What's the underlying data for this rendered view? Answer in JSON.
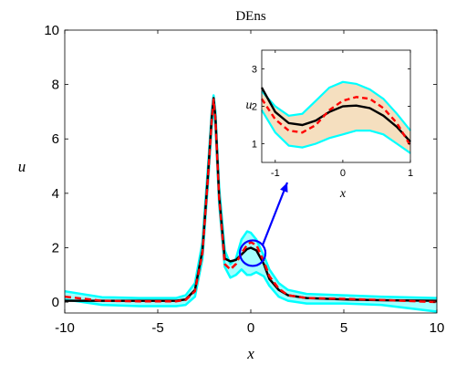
{
  "chart_data": {
    "type": "line",
    "title": "DEns",
    "xlabel": "x",
    "ylabel": "u",
    "xlim": [
      -10,
      10
    ],
    "ylim": [
      -0.4,
      10
    ],
    "x_ticks": [
      -10,
      -5,
      0,
      5,
      10
    ],
    "y_ticks": [
      0,
      2,
      4,
      6,
      8,
      10
    ],
    "grid": false,
    "series": [
      {
        "color": "#00ffff",
        "role": "band",
        "x": [
          -10,
          -8,
          -6,
          -4,
          -3.5,
          -3,
          -2.6,
          -2.3,
          -2.1,
          -2,
          -1.9,
          -1.7,
          -1.4,
          -1.1,
          -0.8,
          -0.5,
          -0.2,
          0,
          0.3,
          0.7,
          1,
          1.5,
          2,
          3,
          5,
          7,
          10
        ],
        "upper": [
          0.4,
          0.18,
          0.15,
          0.15,
          0.25,
          0.7,
          2.2,
          5.0,
          7.0,
          7.6,
          7.0,
          4.2,
          1.9,
          1.4,
          1.6,
          2.3,
          2.6,
          2.55,
          2.3,
          1.7,
          1.2,
          0.7,
          0.45,
          0.3,
          0.25,
          0.2,
          0.15
        ],
        "lower": [
          0.1,
          -0.1,
          -0.15,
          -0.15,
          -0.1,
          0.2,
          1.6,
          4.4,
          6.5,
          7.2,
          6.5,
          3.6,
          1.3,
          0.9,
          1.0,
          1.2,
          1.0,
          1.0,
          1.1,
          0.95,
          0.6,
          0.2,
          0.05,
          -0.05,
          -0.05,
          -0.1,
          -0.35
        ]
      },
      {
        "color": "#000000",
        "style": "solid",
        "x": [
          -10,
          -8,
          -6,
          -4,
          -3.5,
          -3,
          -2.6,
          -2.3,
          -2.1,
          -2,
          -1.9,
          -1.7,
          -1.4,
          -1.1,
          -0.8,
          -0.5,
          -0.2,
          0,
          0.3,
          0.7,
          1,
          1.5,
          2,
          3,
          5,
          7,
          10
        ],
        "y": [
          0.05,
          0.05,
          0.05,
          0.05,
          0.1,
          0.45,
          1.9,
          4.7,
          6.8,
          7.5,
          6.8,
          3.9,
          1.6,
          1.5,
          1.55,
          1.75,
          1.95,
          2.0,
          1.9,
          1.4,
          0.85,
          0.45,
          0.25,
          0.15,
          0.1,
          0.07,
          0.05
        ]
      },
      {
        "color": "#ff0000",
        "style": "dashed",
        "x": [
          -10,
          -8,
          -6,
          -4,
          -3.5,
          -3,
          -2.6,
          -2.3,
          -2.1,
          -2,
          -1.9,
          -1.7,
          -1.4,
          -1.1,
          -0.8,
          -0.5,
          -0.2,
          0,
          0.3,
          0.7,
          1,
          1.5,
          2,
          3,
          5,
          7,
          10
        ],
        "y": [
          0.2,
          0.05,
          0.03,
          0.03,
          0.08,
          0.4,
          1.8,
          4.6,
          6.7,
          7.45,
          6.7,
          3.8,
          1.4,
          1.2,
          1.4,
          1.8,
          2.1,
          2.2,
          2.1,
          1.5,
          0.95,
          0.5,
          0.25,
          0.15,
          0.12,
          0.08,
          0.0
        ]
      }
    ],
    "inset": {
      "xlabel": "x",
      "ylabel": "u",
      "xlim": [
        -1.2,
        1
      ],
      "ylim": [
        0.5,
        3.5
      ],
      "x_ticks": [
        -1,
        0,
        1
      ],
      "y_ticks": [
        1,
        2,
        3
      ],
      "band_fill": "#f5dfbf",
      "x": [
        -1.2,
        -1.0,
        -0.8,
        -0.6,
        -0.4,
        -0.2,
        0.0,
        0.2,
        0.4,
        0.6,
        0.8,
        1.0
      ],
      "upper": [
        2.4,
        2.0,
        1.75,
        1.8,
        2.15,
        2.5,
        2.65,
        2.6,
        2.45,
        2.2,
        1.8,
        1.35
      ],
      "lower": [
        1.9,
        1.3,
        0.95,
        0.9,
        1.0,
        1.15,
        1.25,
        1.35,
        1.35,
        1.25,
        1.0,
        0.75
      ],
      "black": [
        2.5,
        1.85,
        1.55,
        1.5,
        1.62,
        1.85,
        2.0,
        2.02,
        1.95,
        1.75,
        1.45,
        1.05
      ],
      "red": [
        2.2,
        1.65,
        1.35,
        1.3,
        1.5,
        1.9,
        2.15,
        2.25,
        2.2,
        1.95,
        1.55,
        0.95
      ]
    },
    "annotation": {
      "circle_center": [
        0.1,
        1.8
      ],
      "arrow_color": "#0000ff"
    }
  }
}
